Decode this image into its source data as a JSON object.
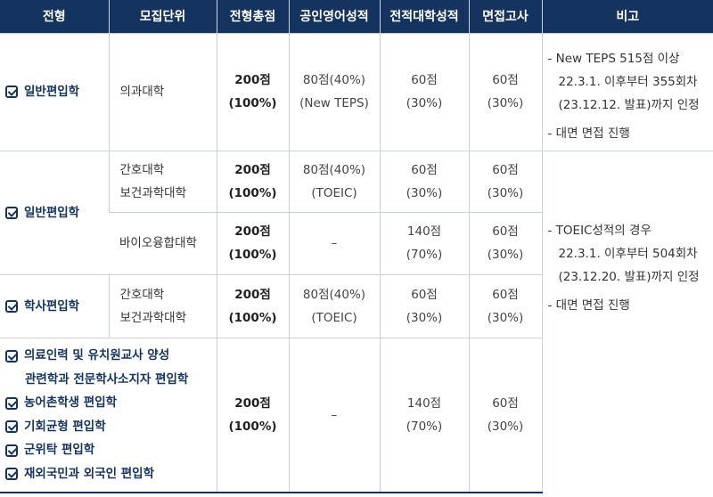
{
  "headers": [
    "전형",
    "모집단위",
    "전형총점",
    "공인영어성적",
    "전적대학성적",
    "면접고사",
    "비고"
  ],
  "rows": [
    {
      "type_lines": [
        "일반편입학"
      ],
      "unit_lines": [
        "의과대학"
      ],
      "total": [
        "200점",
        "(100%)"
      ],
      "english": [
        "80점(40%)",
        "(New TEPS)"
      ],
      "prev": [
        "60점",
        "(30%)"
      ],
      "interview": [
        "60점",
        "(30%)"
      ]
    },
    {
      "type_lines": [
        "일반편입학"
      ],
      "unit_lines": [
        "간호대학",
        "보건과학대학"
      ],
      "total": [
        "200점",
        "(100%)"
      ],
      "english": [
        "80점(40%)",
        "(TOEIC)"
      ],
      "prev": [
        "60점",
        "(30%)"
      ],
      "interview": [
        "60점",
        "(30%)"
      ]
    },
    {
      "unit_lines": [
        "바이오융합대학"
      ],
      "total": [
        "200점",
        "(100%)"
      ],
      "english": [
        "–"
      ],
      "prev": [
        "140점",
        "(70%)"
      ],
      "interview": [
        "60점",
        "(30%)"
      ]
    },
    {
      "type_lines": [
        "학사편입학"
      ],
      "unit_lines": [
        "간호대학",
        "보건과학대학"
      ],
      "total": [
        "200점",
        "(100%)"
      ],
      "english": [
        "80점(40%)",
        "(TOEIC)"
      ],
      "prev": [
        "60점",
        "(30%)"
      ],
      "interview": [
        "60점",
        "(30%)"
      ]
    },
    {
      "type_lines": [
        "의료인력 및 유치원교사 양성",
        "관련학과 전문학사소지자 편입학",
        "농어촌학생 편입학",
        "기회균형 편입학",
        "군위탁 편입학",
        "재외국민과 외국인 편입학"
      ],
      "total": [
        "200점",
        "(100%)"
      ],
      "english": [
        "–"
      ],
      "prev": [
        "140점",
        "(70%)"
      ],
      "interview": [
        "60점",
        "(30%)"
      ]
    }
  ],
  "notes": {
    "teps": [
      "- New TEPS 515점 이상",
      "22.3.1. 이후부터 355회차",
      "(23.12.12. 발표)까지 인정",
      "- 대면 면접 진행"
    ],
    "toeic": [
      "- TOEIC성적의 경우",
      "22.3.1. 이후부터 504회차",
      "(23.12.20. 발표)까지 인정",
      "- 대면 면접 진행"
    ]
  },
  "colors": {
    "header_bg": "#14335e",
    "grid": "#c7d0dc",
    "accent": "#14335e"
  }
}
